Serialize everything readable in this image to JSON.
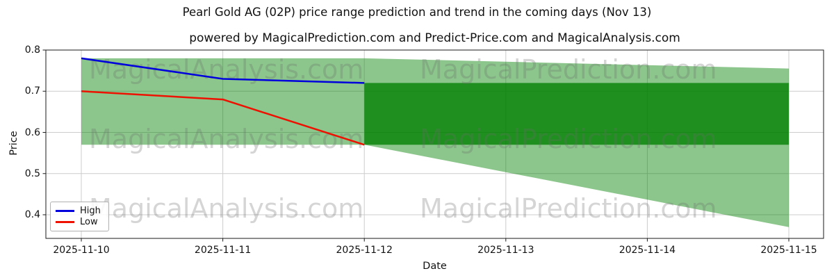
{
  "header": {
    "title": "Pearl Gold AG (02P) price range prediction and trend in the coming days (Nov 13)",
    "subtitle": "powered by MagicalPrediction.com and Predict-Price.com and MagicalAnalysis.com"
  },
  "watermarks": {
    "analysis": "MagicalAnalysis.com",
    "prediction": "MagicalPrediction.com"
  },
  "axes": {
    "xlabel": "Date",
    "ylabel": "Price",
    "x_ticks": [
      "2025-11-10",
      "2025-11-11",
      "2025-11-12",
      "2025-11-13",
      "2025-11-14",
      "2025-11-15"
    ],
    "y_ticks": [
      "0.8",
      "0.7",
      "0.6",
      "0.5",
      "0.4"
    ]
  },
  "legend": {
    "items": [
      {
        "label": "High",
        "color": "#0000dd"
      },
      {
        "label": "Low",
        "color": "#ee1100"
      }
    ]
  },
  "colors": {
    "high_line": "#0000dd",
    "low_line": "#ee1100",
    "band_light": "rgba(0,128,0,0.45)",
    "band_dark": "rgba(0,128,0,0.78)",
    "gridline": "#cccccc",
    "spine": "#1a1a1a"
  },
  "chart_data": {
    "type": "line",
    "title": "Pearl Gold AG (02P) price range prediction and trend in the coming days (Nov 13)",
    "xlabel": "Date",
    "ylabel": "Price",
    "x": [
      "2025-11-10",
      "2025-11-11",
      "2025-11-12",
      "2025-11-13",
      "2025-11-14",
      "2025-11-15"
    ],
    "y_ticks": [
      0.8,
      0.7,
      0.6,
      0.5,
      0.4
    ],
    "ylim": [
      0.342,
      0.8
    ],
    "grid": true,
    "legend_position": "lower left",
    "series": [
      {
        "name": "High",
        "color": "#0000dd",
        "values": [
          0.78,
          0.73,
          0.72
        ]
      },
      {
        "name": "Low",
        "color": "#ee1100",
        "values": [
          0.7,
          0.68,
          0.57
        ]
      }
    ],
    "bands": [
      {
        "name": "historical-range",
        "color": "rgba(0,128,0,0.45)",
        "x": [
          "2025-11-10",
          "2025-11-12"
        ],
        "top": [
          0.78,
          0.78
        ],
        "bottom": [
          0.57,
          0.57
        ]
      },
      {
        "name": "prediction-outer-range",
        "color": "rgba(0,128,0,0.45)",
        "x": [
          "2025-11-12",
          "2025-11-15"
        ],
        "top": [
          0.78,
          0.755
        ],
        "bottom": [
          0.57,
          0.37
        ]
      },
      {
        "name": "prediction-inner-range",
        "color": "rgba(0,128,0,0.78)",
        "x": [
          "2025-11-12",
          "2025-11-15"
        ],
        "top": [
          0.72,
          0.72
        ],
        "bottom": [
          0.57,
          0.57
        ]
      }
    ]
  }
}
